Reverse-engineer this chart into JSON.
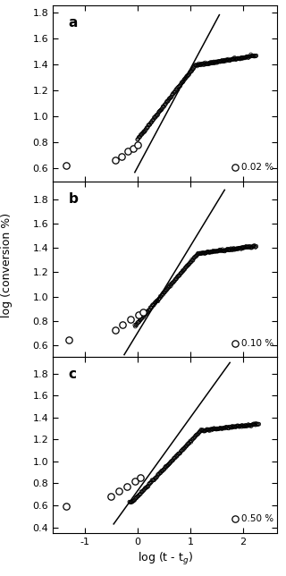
{
  "panels": [
    {
      "label": "a",
      "annotation": "0.02 %",
      "ylim": [
        0.5,
        1.85
      ],
      "yticks": [
        0.6,
        0.8,
        1.0,
        1.2,
        1.4,
        1.6,
        1.8
      ],
      "line_x": [
        -0.05,
        1.55
      ],
      "line_y": [
        0.57,
        1.78
      ],
      "dense_x_start": 0.0,
      "dense_x_end": 2.25,
      "dense_y_start": 0.82,
      "dense_y_max": 1.62,
      "dense_slope": 0.52,
      "dense_break": 1.1,
      "dense_slope2": 0.065,
      "isolated_points": [
        [
          -1.35,
          0.62
        ],
        [
          -0.42,
          0.665
        ],
        [
          -0.3,
          0.69
        ],
        [
          -0.18,
          0.73
        ],
        [
          -0.08,
          0.755
        ],
        [
          0.0,
          0.78
        ]
      ]
    },
    {
      "label": "b",
      "annotation": "0.10 %",
      "ylim": [
        0.5,
        1.95
      ],
      "yticks": [
        0.6,
        0.8,
        1.0,
        1.2,
        1.4,
        1.6,
        1.8
      ],
      "line_x": [
        -0.25,
        1.65
      ],
      "line_y": [
        0.52,
        1.88
      ],
      "dense_x_start": -0.05,
      "dense_x_end": 2.25,
      "dense_y_start": 0.78,
      "dense_y_max": 1.71,
      "dense_slope": 0.5,
      "dense_break": 1.15,
      "dense_slope2": 0.055,
      "isolated_points": [
        [
          -1.3,
          0.645
        ],
        [
          -0.42,
          0.725
        ],
        [
          -0.28,
          0.77
        ],
        [
          -0.13,
          0.815
        ],
        [
          0.02,
          0.85
        ],
        [
          0.1,
          0.87
        ]
      ]
    },
    {
      "label": "c",
      "annotation": "0.50 %",
      "ylim": [
        0.35,
        1.95
      ],
      "yticks": [
        0.4,
        0.6,
        0.8,
        1.0,
        1.2,
        1.4,
        1.6,
        1.8
      ],
      "line_x": [
        -0.45,
        1.75
      ],
      "line_y": [
        0.43,
        1.9
      ],
      "dense_x_start": -0.15,
      "dense_x_end": 2.3,
      "dense_y_start": 0.68,
      "dense_y_max": 1.78,
      "dense_slope": 0.5,
      "dense_break": 1.2,
      "dense_slope2": 0.055,
      "isolated_points": [
        [
          -1.35,
          0.59
        ],
        [
          -0.5,
          0.685
        ],
        [
          -0.35,
          0.73
        ],
        [
          -0.2,
          0.77
        ],
        [
          -0.05,
          0.82
        ],
        [
          0.05,
          0.85
        ]
      ]
    }
  ],
  "xlim": [
    -1.6,
    2.65
  ],
  "xticks": [
    -1,
    0,
    1,
    2
  ],
  "xlabel": "log (t - t$_g$)",
  "ylabel": "log (conversion %)",
  "background_color": "#ffffff"
}
